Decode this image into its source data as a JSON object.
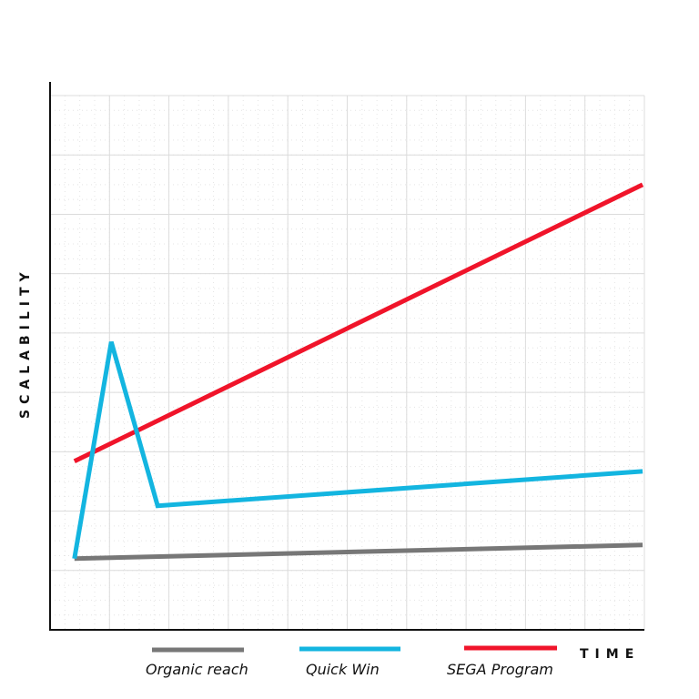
{
  "chart_data": {
    "type": "line",
    "title": "",
    "xlabel": "TIME",
    "ylabel": "SCALABILITY",
    "xlim": [
      0,
      10
    ],
    "ylim": [
      0,
      9
    ],
    "grid": true,
    "legend_position": "bottom",
    "series": [
      {
        "name": "Organic reach",
        "color": "#777777",
        "x": [
          0.41,
          9.97
        ],
        "y": [
          1.2,
          1.43
        ]
      },
      {
        "name": "Quick Win",
        "color": "#13b5e0",
        "x": [
          0.41,
          1.03,
          1.81,
          9.97
        ],
        "y": [
          1.2,
          4.85,
          2.09,
          2.67
        ]
      },
      {
        "name": "SEGA Program",
        "color": "#f0142a",
        "x": [
          0.41,
          9.97
        ],
        "y": [
          2.84,
          7.5
        ]
      }
    ]
  }
}
